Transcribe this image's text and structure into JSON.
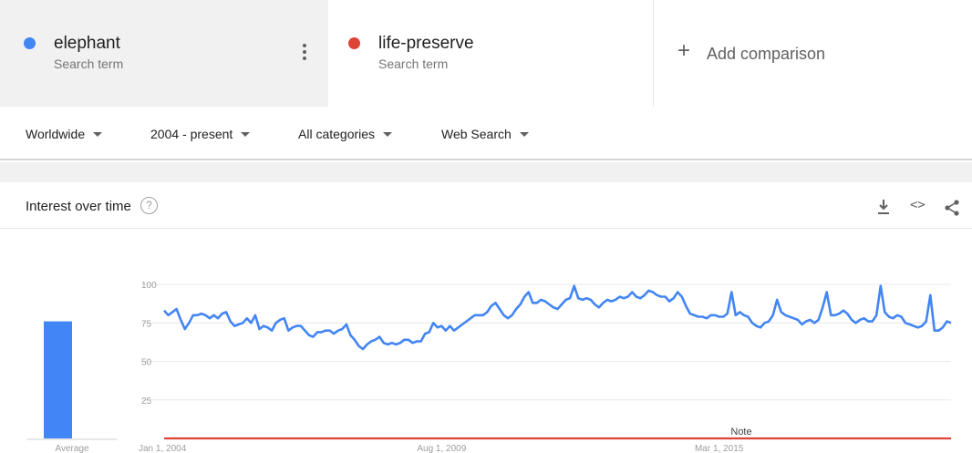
{
  "terms": [
    {
      "name": "elephant",
      "subtitle": "Search term",
      "color": "#4285f4"
    },
    {
      "name": "life-preserve",
      "subtitle": "Search term",
      "color": "#db4437"
    }
  ],
  "add_comparison": {
    "icon": "+",
    "label": "Add comparison"
  },
  "filters": {
    "region": "Worldwide",
    "time": "2004 - present",
    "category": "All categories",
    "search_type": "Web Search"
  },
  "panel": {
    "title": "Interest over time",
    "help": "?",
    "embed": "<>",
    "note": "Note",
    "average_label": "Average"
  },
  "chart_data": {
    "type": "line",
    "title": "",
    "xlabel": "",
    "ylabel": "",
    "ylim": [
      0,
      100
    ],
    "yticks": [
      25,
      50,
      75,
      100
    ],
    "xticks": [
      "Jan 1, 2004",
      "Aug 1, 2009",
      "Mar 1, 2015"
    ],
    "x_start": "Jan 2004",
    "x_end": "Dec 2018",
    "grid": true,
    "averages": [
      {
        "series": "elephant",
        "value": 76
      },
      {
        "series": "life-preserve",
        "value": 0
      }
    ],
    "series": [
      {
        "name": "elephant",
        "color": "#4285f4",
        "values": [
          83,
          80,
          82,
          84,
          77,
          71,
          75,
          80,
          80,
          81,
          80,
          78,
          80,
          78,
          81,
          82,
          76,
          73,
          74,
          75,
          78,
          75,
          80,
          71,
          73,
          72,
          70,
          75,
          77,
          78,
          70,
          72,
          73,
          73,
          70,
          67,
          66,
          69,
          69,
          70,
          70,
          68,
          70,
          71,
          74,
          67,
          64,
          60,
          58,
          61,
          63,
          64,
          66,
          62,
          61,
          62,
          61,
          62,
          64,
          64,
          62,
          63,
          63,
          68,
          69,
          75,
          72,
          73,
          70,
          73,
          70,
          72,
          74,
          76,
          78,
          80,
          80,
          80,
          82,
          86,
          88,
          84,
          80,
          78,
          80,
          84,
          87,
          92,
          95,
          88,
          88,
          90,
          89,
          87,
          85,
          84,
          87,
          90,
          91,
          99,
          91,
          90,
          91,
          90,
          87,
          85,
          88,
          90,
          89,
          90,
          92,
          91,
          92,
          95,
          92,
          91,
          93,
          96,
          95,
          93,
          92,
          92,
          89,
          91,
          95,
          92,
          86,
          81,
          80,
          79,
          79,
          78,
          80,
          80,
          79,
          79,
          81,
          95,
          80,
          82,
          80,
          79,
          75,
          73,
          72,
          75,
          76,
          80,
          90,
          82,
          80,
          79,
          78,
          77,
          74,
          76,
          77,
          75,
          77,
          85,
          95,
          80,
          80,
          81,
          83,
          81,
          77,
          75,
          77,
          78,
          76,
          76,
          80,
          99,
          82,
          79,
          78,
          80,
          79,
          75,
          74,
          73,
          72,
          73,
          76,
          93,
          70,
          70,
          72,
          76,
          75
        ]
      },
      {
        "name": "life-preserve",
        "color": "#db4437",
        "values": [
          0,
          0,
          0,
          0,
          0,
          0,
          0,
          0,
          0,
          0,
          0,
          0,
          0,
          0,
          0,
          0,
          0,
          0,
          0,
          0,
          0,
          0,
          0,
          0,
          0,
          0,
          0,
          0,
          0,
          0,
          0,
          0,
          0,
          0,
          0,
          0,
          0,
          0,
          0,
          0,
          0,
          0,
          0,
          0,
          0,
          0,
          0,
          0,
          0,
          0,
          0,
          0,
          0,
          0,
          0,
          0,
          0,
          0,
          0,
          0,
          0,
          0,
          0,
          0,
          0,
          0,
          0,
          0,
          0,
          0,
          0,
          0,
          0,
          0,
          0,
          0,
          0,
          0,
          0,
          0,
          0,
          0,
          0,
          0,
          0,
          0,
          0,
          0,
          0,
          0,
          0,
          0,
          0,
          0,
          0,
          0,
          0,
          0,
          0,
          0,
          0,
          0,
          0,
          0,
          0,
          0,
          0,
          0,
          0,
          0,
          0,
          0,
          0,
          0,
          0,
          0,
          0,
          0,
          0,
          0,
          0,
          0,
          0,
          0,
          0,
          0,
          0,
          0,
          0,
          0,
          0,
          0,
          0,
          0,
          0,
          0,
          0,
          0,
          0,
          0,
          0,
          0,
          0,
          0,
          0,
          0,
          0,
          0,
          0,
          0,
          0,
          0,
          0,
          0,
          0,
          0,
          0,
          0,
          0,
          0,
          0,
          0,
          0,
          0,
          0,
          0,
          0,
          0,
          0,
          0,
          0,
          0,
          0,
          0,
          0,
          0,
          0,
          0,
          0,
          0,
          0,
          0,
          0,
          0,
          0,
          0,
          0,
          0,
          0,
          0,
          0
        ]
      }
    ]
  }
}
